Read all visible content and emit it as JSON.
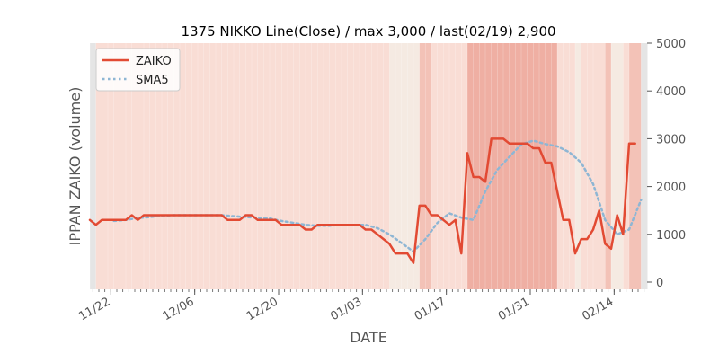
{
  "chart_data": {
    "type": "line",
    "title": "1375 NIKKO Line(Close) / max 3,000 / last(02/19) 2,900",
    "xlabel": "DATE",
    "ylabel": "IPPAN ZAIKO (volume)",
    "ylim": [
      0,
      5000
    ],
    "yticks": [
      "0",
      "1000",
      "2000",
      "3000",
      "4000",
      "5000"
    ],
    "xticks": [
      {
        "day": 3,
        "label": "11/22"
      },
      {
        "day": 17,
        "label": "12/06"
      },
      {
        "day": 31,
        "label": "12/20"
      },
      {
        "day": 45,
        "label": "01/03"
      },
      {
        "day": 59,
        "label": "01/17"
      },
      {
        "day": 73,
        "label": "01/31"
      },
      {
        "day": 87,
        "label": "02/14"
      }
    ],
    "x_start": "11/19",
    "x_range_days": [
      0,
      92
    ],
    "grid": false,
    "legend_position": "top-left",
    "colors": {
      "zaiko": "#e24a33",
      "sma5": "#8eb6d4",
      "band_light": "#f9ddd5",
      "band_mid": "#f3c2b7",
      "band_strong": "#efafa3",
      "band_pale": "#f5eae2",
      "band_gray": "#e5e5e5"
    },
    "series": [
      {
        "name": "ZAIKO",
        "x": [
          0,
          1,
          2,
          3,
          4,
          5,
          6,
          7,
          8,
          9,
          10,
          11,
          12,
          13,
          14,
          15,
          16,
          17,
          18,
          19,
          20,
          21,
          22,
          23,
          24,
          25,
          26,
          27,
          28,
          29,
          30,
          31,
          32,
          33,
          34,
          35,
          36,
          37,
          38,
          39,
          40,
          41,
          42,
          43,
          44,
          45,
          46,
          47,
          48,
          49,
          50,
          51,
          52,
          53,
          54,
          55,
          56,
          57,
          58,
          59,
          60,
          61,
          62,
          63,
          64,
          65,
          66,
          67,
          68,
          69,
          70,
          71,
          72,
          73,
          74,
          75,
          76,
          77,
          78,
          79,
          80,
          81,
          82,
          83,
          84,
          85,
          86,
          87,
          88,
          89,
          90,
          91,
          92
        ],
        "values": [
          1300,
          1200,
          1300,
          1300,
          1300,
          1300,
          1300,
          1400,
          1300,
          1400,
          1400,
          1400,
          1400,
          1400,
          1400,
          1400,
          1400,
          1400,
          1400,
          1400,
          1400,
          1400,
          1400,
          1300,
          1300,
          1300,
          1400,
          1400,
          1300,
          1300,
          1300,
          1300,
          1200,
          1200,
          1200,
          1200,
          1100,
          1100,
          1200,
          1200,
          1200,
          1200,
          1200,
          1200,
          1200,
          1200,
          1100,
          1100,
          1000,
          900,
          800,
          600,
          600,
          600,
          400,
          1600,
          1600,
          1400,
          1400,
          1300,
          1200,
          1300,
          600,
          2700,
          2200,
          2200,
          2100,
          3000,
          3000,
          3000,
          2900,
          2900,
          2900,
          2900,
          2800,
          2800,
          2500,
          2500,
          1900,
          1300,
          1300,
          600,
          900,
          900,
          1100,
          1500,
          800,
          700,
          1400,
          1000,
          2900,
          2900,
          null
        ]
      },
      {
        "name": "SMA5",
        "x": [
          4,
          6,
          8,
          10,
          12,
          14,
          16,
          18,
          20,
          22,
          24,
          26,
          28,
          30,
          32,
          34,
          36,
          38,
          40,
          42,
          44,
          46,
          48,
          50,
          52,
          54,
          56,
          58,
          60,
          62,
          64,
          66,
          68,
          70,
          72,
          74,
          76,
          78,
          80,
          82,
          84,
          86,
          88,
          90,
          92
        ],
        "values": [
          1280,
          1300,
          1340,
          1360,
          1390,
          1400,
          1400,
          1400,
          1400,
          1400,
          1380,
          1360,
          1350,
          1330,
          1280,
          1240,
          1200,
          1180,
          1180,
          1200,
          1200,
          1200,
          1130,
          1000,
          820,
          640,
          900,
          1240,
          1440,
          1350,
          1300,
          1900,
          2350,
          2620,
          2880,
          2960,
          2890,
          2840,
          2720,
          2500,
          2050,
          1300,
          1000,
          1100,
          1720
        ]
      }
    ],
    "background_bands": [
      {
        "from": 0,
        "to": 1,
        "shade": "gray"
      },
      {
        "from": 1,
        "to": 50,
        "shade": "light"
      },
      {
        "from": 50,
        "to": 55,
        "shade": "pale"
      },
      {
        "from": 55,
        "to": 57,
        "shade": "mid"
      },
      {
        "from": 57,
        "to": 63,
        "shade": "light"
      },
      {
        "from": 63,
        "to": 78,
        "shade": "strong"
      },
      {
        "from": 78,
        "to": 81,
        "shade": "light"
      },
      {
        "from": 81,
        "to": 82,
        "shade": "pale"
      },
      {
        "from": 82,
        "to": 86,
        "shade": "light"
      },
      {
        "from": 86,
        "to": 87,
        "shade": "mid"
      },
      {
        "from": 87,
        "to": 89,
        "shade": "pale"
      },
      {
        "from": 89,
        "to": 90,
        "shade": "light"
      },
      {
        "from": 90,
        "to": 92,
        "shade": "mid"
      },
      {
        "from": 92,
        "to": 93,
        "shade": "gray"
      }
    ]
  }
}
